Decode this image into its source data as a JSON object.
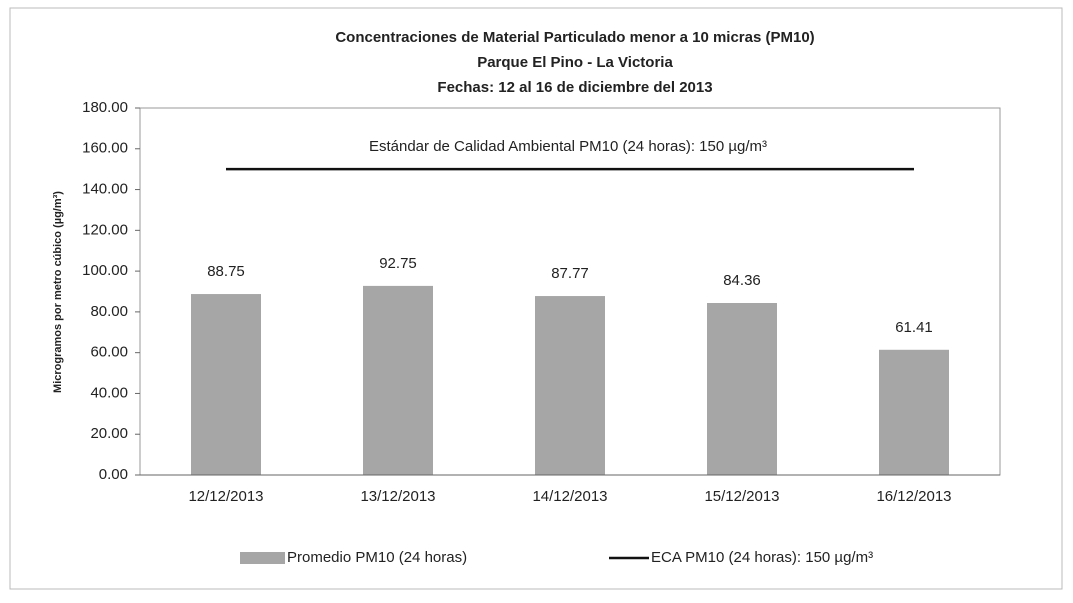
{
  "chart_data": {
    "type": "bar",
    "title": "Concentraciones de  Material Particulado  menor a 10 micras (PM10)",
    "subtitle": "Parque El Pino - La Victoria",
    "subtitle2": "Fechas: 12 al 16 de diciembre del 2013",
    "y_label": "Microgramos por metro cúbico (µg/m³)",
    "annotation": "Estándar de Calidad Ambiental PM10  (24 horas): 150 µg/m³",
    "categories": [
      "12/12/2013",
      "13/12/2013",
      "14/12/2013",
      "15/12/2013",
      "16/12/2013"
    ],
    "series": [
      {
        "name": "Promedio PM10 (24 horas)",
        "type": "bar",
        "color": "#a6a6a6",
        "values": [
          88.75,
          92.75,
          87.77,
          84.36,
          61.41
        ]
      },
      {
        "name": "ECA PM10 (24 horas): 150 µg/m³",
        "type": "line",
        "color": "#111111",
        "values": [
          150,
          150,
          150,
          150,
          150
        ]
      }
    ],
    "ylim": [
      0,
      180
    ],
    "yticks": [
      {
        "value": 0,
        "label": "0.00"
      },
      {
        "value": 20,
        "label": "20.00"
      },
      {
        "value": 40,
        "label": "40.00"
      },
      {
        "value": 60,
        "label": "60.00"
      },
      {
        "value": 80,
        "label": "80.00"
      },
      {
        "value": 100,
        "label": "100.00"
      },
      {
        "value": 120,
        "label": "120.00"
      },
      {
        "value": 140,
        "label": "140.00"
      },
      {
        "value": 160,
        "label": "160.00"
      },
      {
        "value": 180,
        "label": "180.00"
      }
    ],
    "grid": false,
    "legend": "bottom"
  }
}
